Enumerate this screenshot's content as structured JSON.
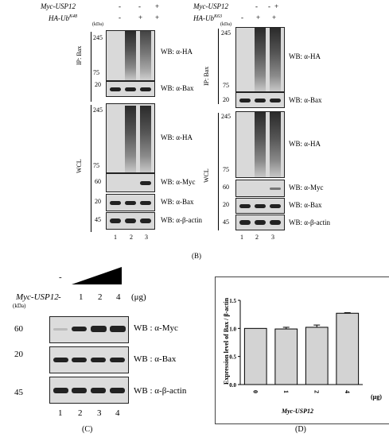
{
  "panel_b": {
    "left": {
      "header": {
        "myc_label": "Myc-USP12",
        "myc_signs": [
          "-",
          "-",
          "+"
        ],
        "ha_label": "HA-Ub",
        "ha_sup": "K48",
        "ha_signs": [
          "-",
          "+",
          "+"
        ]
      },
      "kda": "(kDa)",
      "ip_label": "IP: Bax",
      "wcl_label": "WCL",
      "rows": [
        {
          "marks": [
            "245",
            "75"
          ],
          "label": "WB: α-HA"
        },
        {
          "marks": [
            "20"
          ],
          "label": "WB: α-Bax"
        },
        {
          "marks": [
            "245",
            "75"
          ],
          "label": "WB: α-HA"
        },
        {
          "marks": [
            "60"
          ],
          "label": "WB: α-Myc"
        },
        {
          "marks": [
            "20"
          ],
          "label": "WB: α-Bax"
        },
        {
          "marks": [
            "45"
          ],
          "label": "WB: α-β-actin"
        }
      ],
      "lanes": [
        "1",
        "2",
        "3"
      ]
    },
    "right": {
      "header": {
        "myc_label": "Myc-USP12",
        "myc_signs": [
          "-",
          "-",
          "+"
        ],
        "ha_label": "HA-Ub",
        "ha_sup": "K63",
        "ha_signs": [
          "-",
          "+",
          "+"
        ]
      },
      "kda": "(kDa)",
      "ip_label": "IP: Bax",
      "wcl_label": "WCL",
      "rows": [
        {
          "marks": [
            "245",
            "75"
          ],
          "label": "WB: α-HA"
        },
        {
          "marks": [
            "20"
          ],
          "label": "WB: α-Bax"
        },
        {
          "marks": [
            "245",
            "75"
          ],
          "label": "WB: α-HA"
        },
        {
          "marks": [
            "60"
          ],
          "label": "WB: α-Myc"
        },
        {
          "marks": [
            "20"
          ],
          "label": "WB: α-Bax"
        },
        {
          "marks": [
            "45"
          ],
          "label": "WB: α-β-actin"
        }
      ],
      "lanes": [
        "1",
        "2",
        "3"
      ]
    },
    "letter": "(B)"
  },
  "panel_c": {
    "neg_sign": "-",
    "label": "Myc-USP12",
    "doses": [
      "-",
      "1",
      "2",
      "4"
    ],
    "unit": "(μg)",
    "kda": "(kDa)",
    "rows": [
      {
        "mark": "60",
        "label": "WB : α-Myc"
      },
      {
        "mark": "20",
        "label": "WB : α-Bax"
      },
      {
        "mark": "45",
        "label": "WB : α-β-actin"
      }
    ],
    "lanes": [
      "1",
      "2",
      "3",
      "4"
    ],
    "letter": "(C)"
  },
  "panel_d": {
    "letter": "(D)",
    "chart_data": {
      "type": "bar",
      "categories": [
        "0",
        "1",
        "2",
        "4"
      ],
      "values": [
        1.0,
        0.99,
        1.02,
        1.27
      ],
      "errors": [
        0.0,
        0.03,
        0.04,
        0.01
      ],
      "ylim": [
        0.0,
        1.5
      ],
      "yticks": [
        "0.0",
        "0.5",
        "1.0",
        "1.5"
      ],
      "ylabel": "Expression level of Bax / β-actin",
      "xlabel": "Myc-USP12",
      "unit": "(μg)",
      "bar_color": "#d3d3d3"
    }
  }
}
